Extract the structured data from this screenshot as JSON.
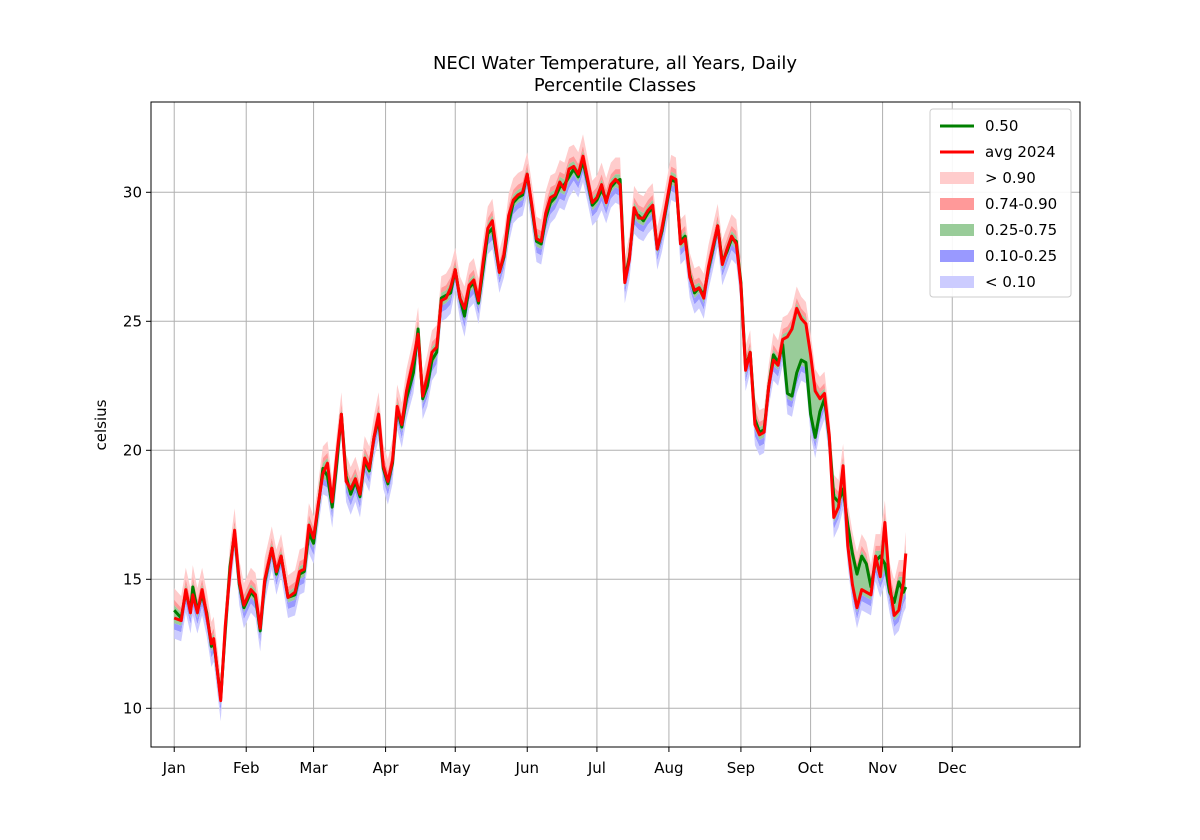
{
  "chart_data": {
    "type": "area",
    "title": "NECI Water Temperature, all Years, Daily",
    "subtitle": "Percentile Classes",
    "ylabel": "celsius",
    "xlabel": "",
    "ylim": [
      8.5,
      33.5
    ],
    "xlim": [
      -10,
      390
    ],
    "grid": true,
    "legend_position": "top-right",
    "colors": {
      "median": "#008000",
      "avg2024": "#ff0000",
      "gt90": "#ffcccc",
      "p74_90": "#ff9999",
      "p25_75": "#99cc99",
      "p10_25": "#9999ff",
      "lt10": "#ccccff"
    },
    "y_ticks": [
      {
        "value": 10,
        "label": "10"
      },
      {
        "value": 15,
        "label": "15"
      },
      {
        "value": 20,
        "label": "20"
      },
      {
        "value": 25,
        "label": "25"
      },
      {
        "value": 30,
        "label": "30"
      }
    ],
    "x_ticks": [
      {
        "value": 0,
        "label": "Jan"
      },
      {
        "value": 31,
        "label": "Feb"
      },
      {
        "value": 60,
        "label": "Mar"
      },
      {
        "value": 91,
        "label": "Apr"
      },
      {
        "value": 121,
        "label": "May"
      },
      {
        "value": 152,
        "label": "Jun"
      },
      {
        "value": 182,
        "label": "Jul"
      },
      {
        "value": 213,
        "label": "Aug"
      },
      {
        "value": 244,
        "label": "Sep"
      },
      {
        "value": 274,
        "label": "Oct"
      },
      {
        "value": 305,
        "label": "Nov"
      },
      {
        "value": 335,
        "label": "Dec"
      }
    ],
    "legend": [
      {
        "key": "median",
        "label": "0.50",
        "kind": "line"
      },
      {
        "key": "avg2024",
        "label": "avg 2024",
        "kind": "line"
      },
      {
        "key": "gt90",
        "label": "> 0.90",
        "kind": "patch"
      },
      {
        "key": "p74_90",
        "label": "0.74-0.90",
        "kind": "patch"
      },
      {
        "key": "p25_75",
        "label": "0.25-0.75",
        "kind": "patch"
      },
      {
        "key": "p10_25",
        "label": "0.10-0.25",
        "kind": "patch"
      },
      {
        "key": "lt10",
        "label": "< 0.10",
        "kind": "patch"
      }
    ],
    "median_points": [
      [
        0,
        13.8
      ],
      [
        3,
        13.5
      ],
      [
        5,
        14.5
      ],
      [
        7,
        13.8
      ],
      [
        8,
        14.7
      ],
      [
        10,
        13.8
      ],
      [
        12,
        14.4
      ],
      [
        14,
        13.7
      ],
      [
        16,
        12.4
      ],
      [
        17,
        12.6
      ],
      [
        20,
        10.4
      ],
      [
        22,
        13.0
      ],
      [
        24,
        15.5
      ],
      [
        26,
        16.8
      ],
      [
        28,
        14.8
      ],
      [
        30,
        13.9
      ],
      [
        33,
        14.5
      ],
      [
        35,
        14.3
      ],
      [
        37,
        13.0
      ],
      [
        39,
        14.9
      ],
      [
        42,
        16.2
      ],
      [
        44,
        15.2
      ],
      [
        46,
        15.9
      ],
      [
        49,
        14.3
      ],
      [
        52,
        14.4
      ],
      [
        54,
        15.2
      ],
      [
        56,
        15.3
      ],
      [
        58,
        16.8
      ],
      [
        60,
        16.4
      ],
      [
        62,
        17.8
      ],
      [
        64,
        19.3
      ],
      [
        66,
        19.0
      ],
      [
        68,
        17.8
      ],
      [
        70,
        19.5
      ],
      [
        72,
        21.4
      ],
      [
        74,
        19.0
      ],
      [
        76,
        18.3
      ],
      [
        78,
        18.8
      ],
      [
        80,
        18.2
      ],
      [
        82,
        19.6
      ],
      [
        84,
        19.2
      ],
      [
        86,
        20.5
      ],
      [
        88,
        21.2
      ],
      [
        90,
        19.3
      ],
      [
        92,
        18.7
      ],
      [
        94,
        19.5
      ],
      [
        96,
        21.6
      ],
      [
        98,
        20.9
      ],
      [
        100,
        22.0
      ],
      [
        103,
        23.0
      ],
      [
        105,
        24.7
      ],
      [
        107,
        22.0
      ],
      [
        109,
        22.5
      ],
      [
        111,
        23.5
      ],
      [
        113,
        23.8
      ],
      [
        115,
        25.9
      ],
      [
        117,
        26.0
      ],
      [
        119,
        26.1
      ],
      [
        121,
        27.0
      ],
      [
        123,
        25.9
      ],
      [
        125,
        25.2
      ],
      [
        127,
        26.3
      ],
      [
        129,
        26.5
      ],
      [
        131,
        25.7
      ],
      [
        133,
        27.0
      ],
      [
        135,
        28.4
      ],
      [
        137,
        28.6
      ],
      [
        140,
        26.9
      ],
      [
        142,
        27.5
      ],
      [
        144,
        28.8
      ],
      [
        146,
        29.6
      ],
      [
        148,
        29.8
      ],
      [
        150,
        29.9
      ],
      [
        152,
        30.7
      ],
      [
        154,
        29.4
      ],
      [
        156,
        28.1
      ],
      [
        158,
        28.0
      ],
      [
        160,
        29.0
      ],
      [
        162,
        29.6
      ],
      [
        164,
        29.8
      ],
      [
        166,
        30.2
      ],
      [
        168,
        30.3
      ],
      [
        170,
        30.6
      ],
      [
        172,
        30.9
      ],
      [
        174,
        30.6
      ],
      [
        176,
        31.2
      ],
      [
        178,
        30.4
      ],
      [
        180,
        29.5
      ],
      [
        182,
        29.7
      ],
      [
        184,
        30.1
      ],
      [
        186,
        29.7
      ],
      [
        188,
        30.2
      ],
      [
        190,
        30.4
      ],
      [
        192,
        30.5
      ],
      [
        194,
        26.6
      ],
      [
        196,
        27.5
      ],
      [
        198,
        29.2
      ],
      [
        200,
        29.1
      ],
      [
        202,
        28.9
      ],
      [
        204,
        29.2
      ],
      [
        206,
        29.4
      ],
      [
        208,
        27.8
      ],
      [
        210,
        28.5
      ],
      [
        212,
        29.5
      ],
      [
        214,
        30.5
      ],
      [
        216,
        30.4
      ],
      [
        218,
        28.1
      ],
      [
        220,
        28.3
      ],
      [
        222,
        26.8
      ],
      [
        224,
        26.1
      ],
      [
        226,
        26.3
      ],
      [
        228,
        26.0
      ],
      [
        230,
        27.0
      ],
      [
        232,
        27.8
      ],
      [
        234,
        28.7
      ],
      [
        236,
        27.3
      ],
      [
        238,
        27.7
      ],
      [
        240,
        28.2
      ],
      [
        242,
        28.1
      ],
      [
        244,
        26.5
      ],
      [
        246,
        23.2
      ],
      [
        248,
        23.8
      ],
      [
        250,
        21.2
      ],
      [
        252,
        20.7
      ],
      [
        254,
        20.8
      ],
      [
        256,
        22.5
      ],
      [
        258,
        23.7
      ],
      [
        260,
        23.4
      ],
      [
        262,
        24.1
      ],
      [
        264,
        22.2
      ],
      [
        266,
        22.1
      ],
      [
        268,
        23.0
      ],
      [
        270,
        23.5
      ],
      [
        272,
        23.4
      ],
      [
        274,
        21.4
      ],
      [
        276,
        20.5
      ],
      [
        278,
        21.5
      ],
      [
        280,
        22.0
      ],
      [
        282,
        20.5
      ],
      [
        284,
        18.2
      ],
      [
        286,
        18.0
      ],
      [
        288,
        18.5
      ],
      [
        290,
        17.1
      ],
      [
        292,
        16.0
      ],
      [
        294,
        15.2
      ],
      [
        296,
        15.9
      ],
      [
        298,
        15.6
      ],
      [
        300,
        14.7
      ],
      [
        302,
        15.7
      ],
      [
        304,
        15.9
      ],
      [
        306,
        15.6
      ],
      [
        308,
        14.5
      ],
      [
        310,
        14.1
      ],
      [
        312,
        14.9
      ],
      [
        314,
        14.5
      ],
      [
        315,
        14.7
      ]
    ],
    "avg2024_points": [
      [
        0,
        13.5
      ],
      [
        3,
        13.4
      ],
      [
        5,
        14.6
      ],
      [
        7,
        13.7
      ],
      [
        8,
        14.4
      ],
      [
        10,
        13.7
      ],
      [
        12,
        14.6
      ],
      [
        14,
        13.6
      ],
      [
        16,
        12.5
      ],
      [
        17,
        12.7
      ],
      [
        20,
        10.3
      ],
      [
        22,
        13.2
      ],
      [
        24,
        15.3
      ],
      [
        26,
        16.9
      ],
      [
        28,
        14.9
      ],
      [
        30,
        14.0
      ],
      [
        33,
        14.6
      ],
      [
        35,
        14.4
      ],
      [
        37,
        13.1
      ],
      [
        39,
        15.0
      ],
      [
        42,
        16.2
      ],
      [
        44,
        15.3
      ],
      [
        46,
        15.9
      ],
      [
        49,
        14.3
      ],
      [
        52,
        14.5
      ],
      [
        54,
        15.3
      ],
      [
        56,
        15.4
      ],
      [
        58,
        17.1
      ],
      [
        60,
        16.6
      ],
      [
        62,
        17.9
      ],
      [
        64,
        19.1
      ],
      [
        66,
        19.5
      ],
      [
        68,
        18.0
      ],
      [
        70,
        19.8
      ],
      [
        72,
        21.4
      ],
      [
        74,
        18.8
      ],
      [
        76,
        18.5
      ],
      [
        78,
        18.9
      ],
      [
        80,
        18.3
      ],
      [
        82,
        19.7
      ],
      [
        84,
        19.3
      ],
      [
        86,
        20.5
      ],
      [
        88,
        21.4
      ],
      [
        90,
        19.4
      ],
      [
        92,
        18.8
      ],
      [
        94,
        19.6
      ],
      [
        96,
        21.7
      ],
      [
        98,
        21.0
      ],
      [
        100,
        22.3
      ],
      [
        103,
        23.5
      ],
      [
        105,
        24.5
      ],
      [
        107,
        22.1
      ],
      [
        109,
        22.9
      ],
      [
        111,
        23.8
      ],
      [
        113,
        24.0
      ],
      [
        115,
        25.8
      ],
      [
        117,
        25.9
      ],
      [
        119,
        26.3
      ],
      [
        121,
        27.0
      ],
      [
        123,
        25.9
      ],
      [
        125,
        25.5
      ],
      [
        127,
        26.4
      ],
      [
        129,
        26.6
      ],
      [
        131,
        25.8
      ],
      [
        133,
        27.3
      ],
      [
        135,
        28.6
      ],
      [
        137,
        28.9
      ],
      [
        140,
        26.9
      ],
      [
        142,
        27.6
      ],
      [
        144,
        29.1
      ],
      [
        146,
        29.7
      ],
      [
        148,
        29.9
      ],
      [
        150,
        30.0
      ],
      [
        152,
        30.7
      ],
      [
        154,
        29.5
      ],
      [
        156,
        28.2
      ],
      [
        158,
        28.1
      ],
      [
        160,
        29.2
      ],
      [
        162,
        29.8
      ],
      [
        164,
        29.9
      ],
      [
        166,
        30.4
      ],
      [
        168,
        30.1
      ],
      [
        170,
        30.9
      ],
      [
        172,
        31.0
      ],
      [
        174,
        30.7
      ],
      [
        176,
        31.4
      ],
      [
        178,
        30.5
      ],
      [
        180,
        29.6
      ],
      [
        182,
        29.8
      ],
      [
        184,
        30.3
      ],
      [
        186,
        29.6
      ],
      [
        188,
        30.3
      ],
      [
        190,
        30.5
      ],
      [
        192,
        30.3
      ],
      [
        194,
        26.5
      ],
      [
        196,
        27.4
      ],
      [
        198,
        29.4
      ],
      [
        200,
        29.0
      ],
      [
        202,
        29.0
      ],
      [
        204,
        29.3
      ],
      [
        206,
        29.5
      ],
      [
        208,
        27.8
      ],
      [
        210,
        28.6
      ],
      [
        212,
        29.6
      ],
      [
        214,
        30.6
      ],
      [
        216,
        30.5
      ],
      [
        218,
        28.0
      ],
      [
        220,
        28.2
      ],
      [
        222,
        26.7
      ],
      [
        224,
        26.2
      ],
      [
        226,
        26.3
      ],
      [
        228,
        25.9
      ],
      [
        230,
        27.1
      ],
      [
        232,
        27.9
      ],
      [
        234,
        28.7
      ],
      [
        236,
        27.2
      ],
      [
        238,
        27.8
      ],
      [
        240,
        28.3
      ],
      [
        242,
        28.0
      ],
      [
        244,
        26.4
      ],
      [
        246,
        23.1
      ],
      [
        248,
        23.8
      ],
      [
        250,
        21.0
      ],
      [
        252,
        20.6
      ],
      [
        254,
        20.7
      ],
      [
        256,
        22.5
      ],
      [
        258,
        23.5
      ],
      [
        260,
        23.3
      ],
      [
        262,
        24.3
      ],
      [
        264,
        24.4
      ],
      [
        266,
        24.7
      ],
      [
        268,
        25.5
      ],
      [
        270,
        25.1
      ],
      [
        272,
        24.9
      ],
      [
        274,
        23.7
      ],
      [
        276,
        22.3
      ],
      [
        278,
        22.0
      ],
      [
        280,
        22.2
      ],
      [
        282,
        20.6
      ],
      [
        284,
        17.4
      ],
      [
        286,
        17.8
      ],
      [
        288,
        19.4
      ],
      [
        290,
        16.3
      ],
      [
        292,
        14.8
      ],
      [
        294,
        13.9
      ],
      [
        296,
        14.6
      ],
      [
        298,
        14.5
      ],
      [
        300,
        14.4
      ],
      [
        302,
        15.9
      ],
      [
        304,
        15.1
      ],
      [
        306,
        17.2
      ],
      [
        308,
        14.8
      ],
      [
        310,
        13.6
      ],
      [
        312,
        13.8
      ],
      [
        314,
        14.9
      ],
      [
        315,
        16.0
      ]
    ]
  }
}
